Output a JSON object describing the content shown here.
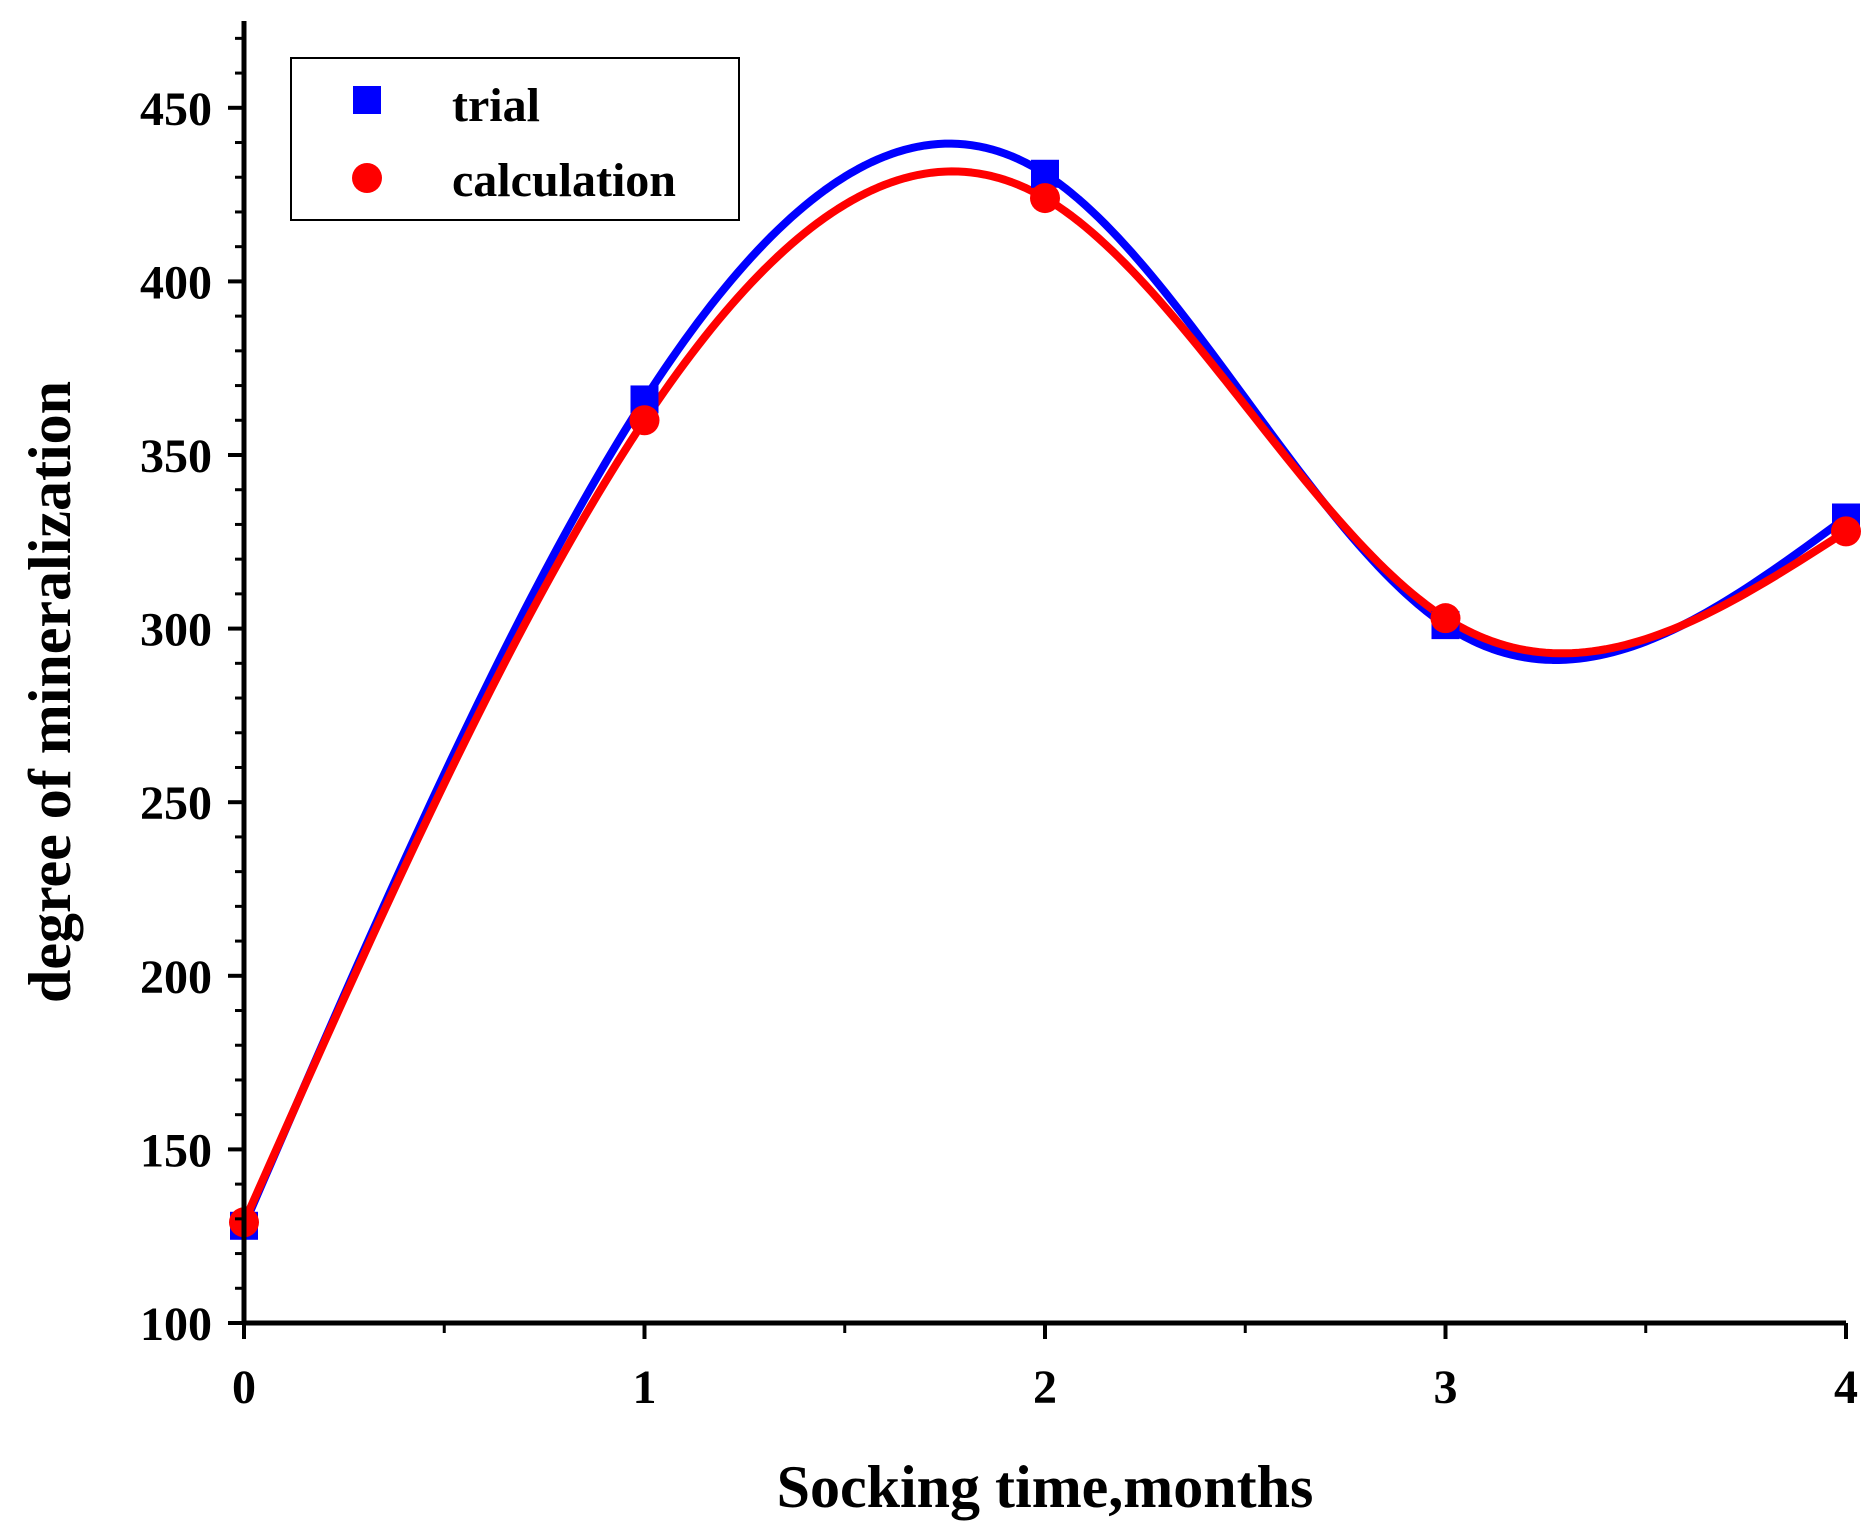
{
  "chart_data": {
    "type": "scatter",
    "title": "",
    "xlabel": "Socking time,months",
    "ylabel": "degree of mineralization",
    "xlim": [
      0,
      4
    ],
    "ylim": [
      100,
      475
    ],
    "x_ticks": [
      0,
      1,
      2,
      3,
      4
    ],
    "x_tick_labels": [
      "0",
      "1",
      "2",
      "3",
      "4"
    ],
    "y_ticks": [
      100,
      150,
      200,
      250,
      300,
      350,
      400,
      450
    ],
    "y_tick_labels": [
      "100",
      "150",
      "200",
      "250",
      "300",
      "350",
      "400",
      "450"
    ],
    "grid": false,
    "legend_position": "top-left",
    "series": [
      {
        "name": "trial",
        "color": "#0000ff",
        "marker": "square",
        "x": [
          0,
          1,
          2,
          3,
          4
        ],
        "values": [
          128,
          366,
          431,
          301,
          332
        ],
        "fit": "smooth spline"
      },
      {
        "name": "calculation",
        "color": "#ff0000",
        "marker": "circle",
        "x": [
          0,
          1,
          2,
          3,
          4
        ],
        "values": [
          129,
          360,
          424,
          303,
          328
        ],
        "fit": "smooth spline"
      }
    ]
  }
}
